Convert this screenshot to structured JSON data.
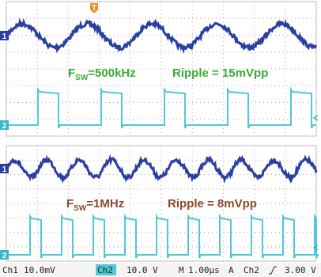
{
  "trigger_marker": "T",
  "panels": [
    {
      "ch1_marker": "1",
      "ch2_marker": "2",
      "fsw": {
        "f": "F",
        "sub": "SW",
        "rest": "=500kHz"
      },
      "ripple": "Ripple = 15mVpp"
    },
    {
      "ch1_marker": "1",
      "ch2_marker": "2",
      "fsw": {
        "f": "F",
        "sub": "SW",
        "rest": "=1MHz"
      },
      "ripple": "Ripple = 8mVpp"
    }
  ],
  "status_bar": {
    "ch1": "Ch1",
    "ch1_scale": "10.0mV",
    "ch2": "Ch2",
    "ch2_scale": "10.0 V",
    "m": "M",
    "timebase": "1.00µs",
    "a": "A",
    "trig_ch": "Ch2",
    "trig_level": "3.00 V"
  }
}
